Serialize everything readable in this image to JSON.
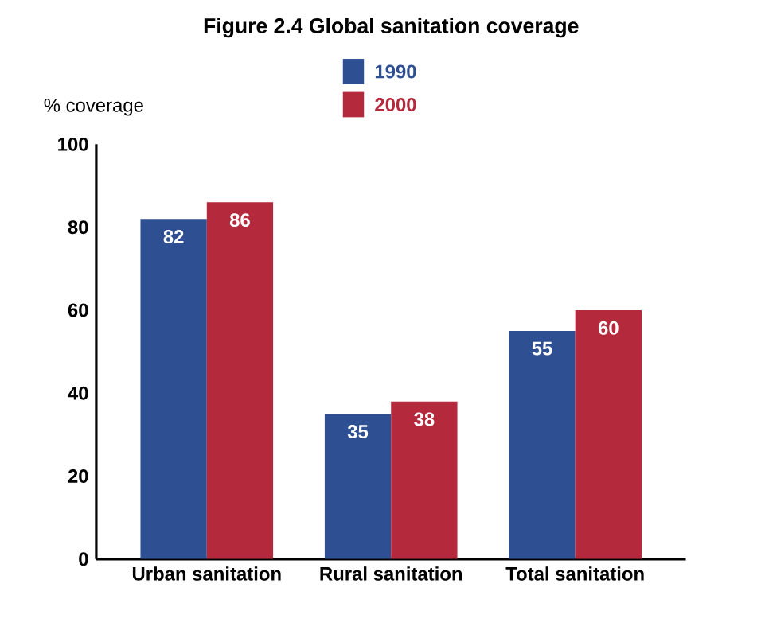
{
  "chart_data": {
    "type": "bar",
    "title": "Figure 2.4   Global sanitation coverage",
    "ylabel": "% coverage",
    "categories": [
      "Urban sanitation",
      "Rural sanitation",
      "Total sanitation"
    ],
    "series": [
      {
        "name": "1990",
        "color": "#2f4f93",
        "values": [
          82,
          35,
          55
        ]
      },
      {
        "name": "2000",
        "color": "#b5293c",
        "values": [
          86,
          38,
          60
        ]
      }
    ],
    "ylim": [
      0,
      100
    ],
    "yticks": [
      0,
      20,
      40,
      60,
      80,
      100
    ],
    "grid": false,
    "legend": "top",
    "data_labels": true
  }
}
